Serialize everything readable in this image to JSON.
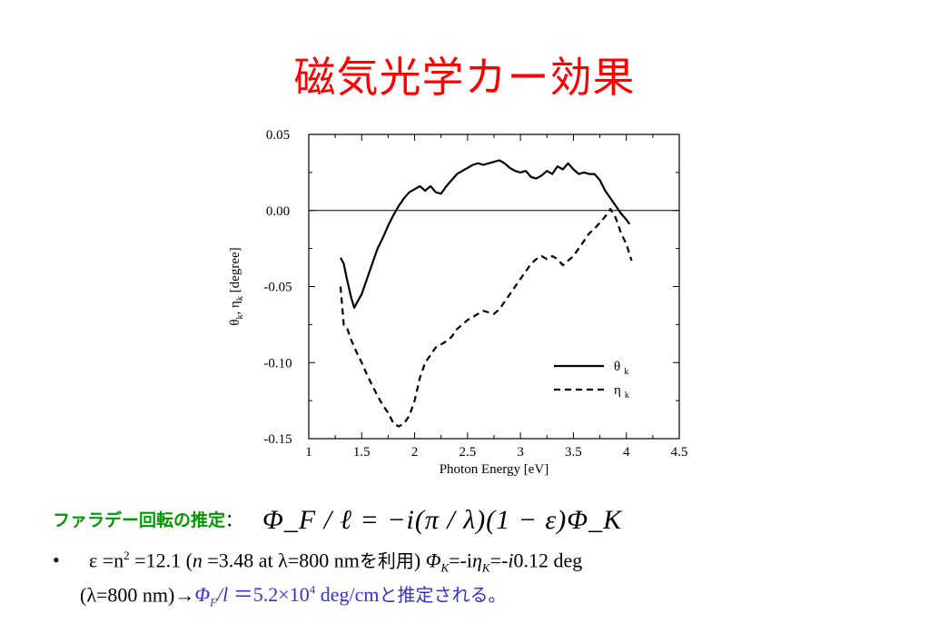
{
  "slide": {
    "title": "磁気光学カー効果",
    "estimate_label": "ファラデー回転の推定",
    "estimate_colon": "：",
    "formula": "Φ_F / ℓ = −i(π / λ)(1 − ε)Φ_K",
    "bullet_symbol": "•",
    "line1_epsilon": "ε =n",
    "line1_sq": "2",
    "line1_val": " =12.1 (",
    "line1_n": "n",
    "line1_nval": " =3.48 at λ=800 nm",
    "line1_jp": "を利用",
    "line1_close": ") ",
    "line1_phik": "Φ",
    "line1_phik_sub": "K",
    "line1_eq": "=-i",
    "line1_eta": "η",
    "line1_eta_sub": "K",
    "line1_eq2": "=-",
    "line1_i": "i",
    "line1_deg": "0.12 deg",
    "line2_start": "(λ=800 nm)→",
    "line2_phif": "Φ",
    "line2_phif_sub": "F",
    "line2_l": "/l",
    "line2_val": " ＝5.2×10",
    "line2_exp": "4",
    "line2_unit": " deg/cm",
    "line2_jp": "と推定される。"
  },
  "chart_data": {
    "type": "line",
    "title": "",
    "xlabel": "Photon Energy [eV]",
    "ylabel_main": "θ",
    "ylabel_sub1": "k",
    "ylabel_mid": ", η",
    "ylabel_sub2": "k",
    "ylabel_unit": " [degree]",
    "xlim": [
      1,
      4.5
    ],
    "ylim": [
      -0.15,
      0.05
    ],
    "xticks": [
      1,
      1.5,
      2,
      2.5,
      3,
      3.5,
      4,
      4.5
    ],
    "xtick_labels": [
      "1",
      "1.5",
      "2",
      "2.5",
      "3",
      "3.5",
      "4",
      "4.5"
    ],
    "yticks": [
      0.05,
      0.0,
      -0.05,
      -0.1,
      -0.15
    ],
    "ytick_labels": [
      "0.05",
      "0.00",
      "-0.05",
      "-0.10",
      "-0.15"
    ],
    "zero_line": true,
    "legend_position": "lower-right",
    "series": [
      {
        "name": "θ",
        "name_sub": "k",
        "style": "solid",
        "x": [
          1.3,
          1.33,
          1.36,
          1.4,
          1.43,
          1.46,
          1.5,
          1.55,
          1.6,
          1.65,
          1.7,
          1.75,
          1.8,
          1.85,
          1.9,
          1.95,
          2.0,
          2.05,
          2.1,
          2.15,
          2.2,
          2.25,
          2.3,
          2.35,
          2.4,
          2.45,
          2.5,
          2.55,
          2.6,
          2.65,
          2.7,
          2.75,
          2.8,
          2.85,
          2.9,
          2.95,
          3.0,
          3.05,
          3.1,
          3.15,
          3.2,
          3.25,
          3.3,
          3.35,
          3.4,
          3.45,
          3.5,
          3.55,
          3.6,
          3.65,
          3.7,
          3.75,
          3.8,
          3.85,
          3.9,
          3.95,
          4.0,
          4.03
        ],
        "y": [
          -0.031,
          -0.035,
          -0.045,
          -0.057,
          -0.064,
          -0.06,
          -0.055,
          -0.045,
          -0.035,
          -0.025,
          -0.018,
          -0.01,
          -0.003,
          0.003,
          0.008,
          0.012,
          0.014,
          0.016,
          0.013,
          0.016,
          0.012,
          0.011,
          0.016,
          0.02,
          0.024,
          0.026,
          0.028,
          0.03,
          0.031,
          0.03,
          0.031,
          0.032,
          0.033,
          0.031,
          0.028,
          0.026,
          0.025,
          0.026,
          0.022,
          0.021,
          0.023,
          0.026,
          0.024,
          0.029,
          0.027,
          0.031,
          0.027,
          0.024,
          0.025,
          0.024,
          0.024,
          0.02,
          0.013,
          0.008,
          0.003,
          -0.002,
          -0.006,
          -0.009
        ]
      },
      {
        "name": "η",
        "name_sub": "k",
        "style": "dashed",
        "x": [
          1.3,
          1.33,
          1.36,
          1.4,
          1.45,
          1.5,
          1.55,
          1.6,
          1.65,
          1.7,
          1.75,
          1.8,
          1.85,
          1.9,
          1.95,
          2.0,
          2.05,
          2.1,
          2.15,
          2.2,
          2.25,
          2.3,
          2.35,
          2.4,
          2.45,
          2.5,
          2.55,
          2.6,
          2.65,
          2.7,
          2.75,
          2.8,
          2.85,
          2.9,
          2.95,
          3.0,
          3.05,
          3.1,
          3.15,
          3.2,
          3.25,
          3.3,
          3.35,
          3.4,
          3.45,
          3.5,
          3.55,
          3.6,
          3.65,
          3.7,
          3.75,
          3.8,
          3.85,
          3.9,
          3.95,
          4.0,
          4.05
        ],
        "y": [
          -0.05,
          -0.075,
          -0.077,
          -0.085,
          -0.093,
          -0.1,
          -0.108,
          -0.115,
          -0.122,
          -0.128,
          -0.133,
          -0.14,
          -0.142,
          -0.14,
          -0.135,
          -0.125,
          -0.11,
          -0.1,
          -0.095,
          -0.09,
          -0.088,
          -0.086,
          -0.083,
          -0.078,
          -0.075,
          -0.072,
          -0.07,
          -0.068,
          -0.066,
          -0.067,
          -0.068,
          -0.065,
          -0.06,
          -0.055,
          -0.05,
          -0.045,
          -0.04,
          -0.035,
          -0.032,
          -0.03,
          -0.032,
          -0.03,
          -0.032,
          -0.036,
          -0.033,
          -0.03,
          -0.025,
          -0.02,
          -0.015,
          -0.012,
          -0.008,
          -0.004,
          0.001,
          -0.005,
          -0.015,
          -0.022,
          -0.033
        ]
      }
    ]
  }
}
